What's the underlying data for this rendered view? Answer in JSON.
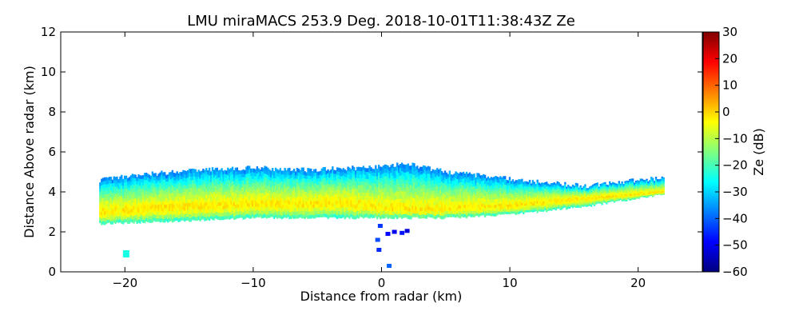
{
  "chart_data": {
    "type": "heatmap",
    "title": "LMU miraMACS 253.9 Deg. 2018-10-01T11:38:43Z  Ze",
    "xlabel": "Distance from radar (km)",
    "ylabel": "Distance Above radar  (km)",
    "xlim": [
      -25,
      25
    ],
    "ylim": [
      0,
      12
    ],
    "x_ticks": [
      -20,
      -10,
      0,
      10,
      20
    ],
    "x_tick_labels": [
      "−20",
      "−10",
      "0",
      "10",
      "20"
    ],
    "y_ticks": [
      0,
      2,
      4,
      6,
      8,
      10,
      12
    ],
    "y_tick_labels": [
      "0",
      "2",
      "4",
      "6",
      "8",
      "10",
      "12"
    ],
    "colorbar": {
      "label": "Ze (dB)",
      "range": [
        -60,
        30
      ],
      "ticks": [
        -60,
        -50,
        -40,
        -30,
        -20,
        -10,
        0,
        10,
        20,
        30
      ],
      "tick_labels": [
        "−60",
        "−50",
        "−40",
        "−30",
        "−20",
        "−10",
        "0",
        "10",
        "20",
        "30"
      ],
      "colormap": [
        "#00007f",
        "#0000ff",
        "#007fff",
        "#00ffff",
        "#7fff7f",
        "#ffff00",
        "#ff7f00",
        "#ff0000",
        "#7f0000"
      ]
    },
    "cloud_layer": {
      "x_range_km": [
        -22,
        22
      ],
      "top_km": [
        [
          -22,
          4.6
        ],
        [
          -18,
          4.9
        ],
        [
          -14,
          5.1
        ],
        [
          -10,
          5.2
        ],
        [
          -6,
          5.1
        ],
        [
          -2,
          5.2
        ],
        [
          2,
          5.4
        ],
        [
          5,
          5.0
        ],
        [
          8,
          4.8
        ],
        [
          12,
          4.5
        ],
        [
          16,
          4.3
        ],
        [
          20,
          4.6
        ],
        [
          22,
          4.7
        ]
      ],
      "base_km": [
        [
          -22,
          2.4
        ],
        [
          -18,
          2.5
        ],
        [
          -14,
          2.6
        ],
        [
          -10,
          2.7
        ],
        [
          -6,
          2.7
        ],
        [
          -2,
          2.7
        ],
        [
          2,
          2.7
        ],
        [
          5,
          2.7
        ],
        [
          8,
          2.8
        ],
        [
          12,
          3.0
        ],
        [
          16,
          3.3
        ],
        [
          20,
          3.7
        ],
        [
          22,
          3.9
        ]
      ],
      "core_km": [
        [
          -22,
          3.0
        ],
        [
          -18,
          3.2
        ],
        [
          -14,
          3.3
        ],
        [
          -10,
          3.4
        ],
        [
          -6,
          3.4
        ],
        [
          -3,
          3.5
        ],
        [
          0,
          3.2
        ],
        [
          3,
          3.1
        ],
        [
          6,
          3.2
        ],
        [
          10,
          3.3
        ],
        [
          14,
          3.6
        ],
        [
          18,
          3.8
        ],
        [
          22,
          4.0
        ]
      ],
      "core_ze_db": -2,
      "edge_ze_db": -25,
      "top_edge_ze_db": -38
    },
    "echoes": [
      {
        "x_km": -19.9,
        "y_km": 0.9,
        "ze_db": -24
      },
      {
        "x_km": -0.3,
        "y_km": 1.6,
        "ze_db": -42
      },
      {
        "x_km": -0.2,
        "y_km": 1.1,
        "ze_db": -45
      },
      {
        "x_km": 0.5,
        "y_km": 1.9,
        "ze_db": -48
      },
      {
        "x_km": 1.0,
        "y_km": 2.0,
        "ze_db": -50
      },
      {
        "x_km": 1.6,
        "y_km": 1.95,
        "ze_db": -47
      },
      {
        "x_km": 2.0,
        "y_km": 2.05,
        "ze_db": -52
      },
      {
        "x_km": -0.1,
        "y_km": 2.3,
        "ze_db": -44
      },
      {
        "x_km": 0.6,
        "y_km": 0.3,
        "ze_db": -40
      }
    ]
  }
}
